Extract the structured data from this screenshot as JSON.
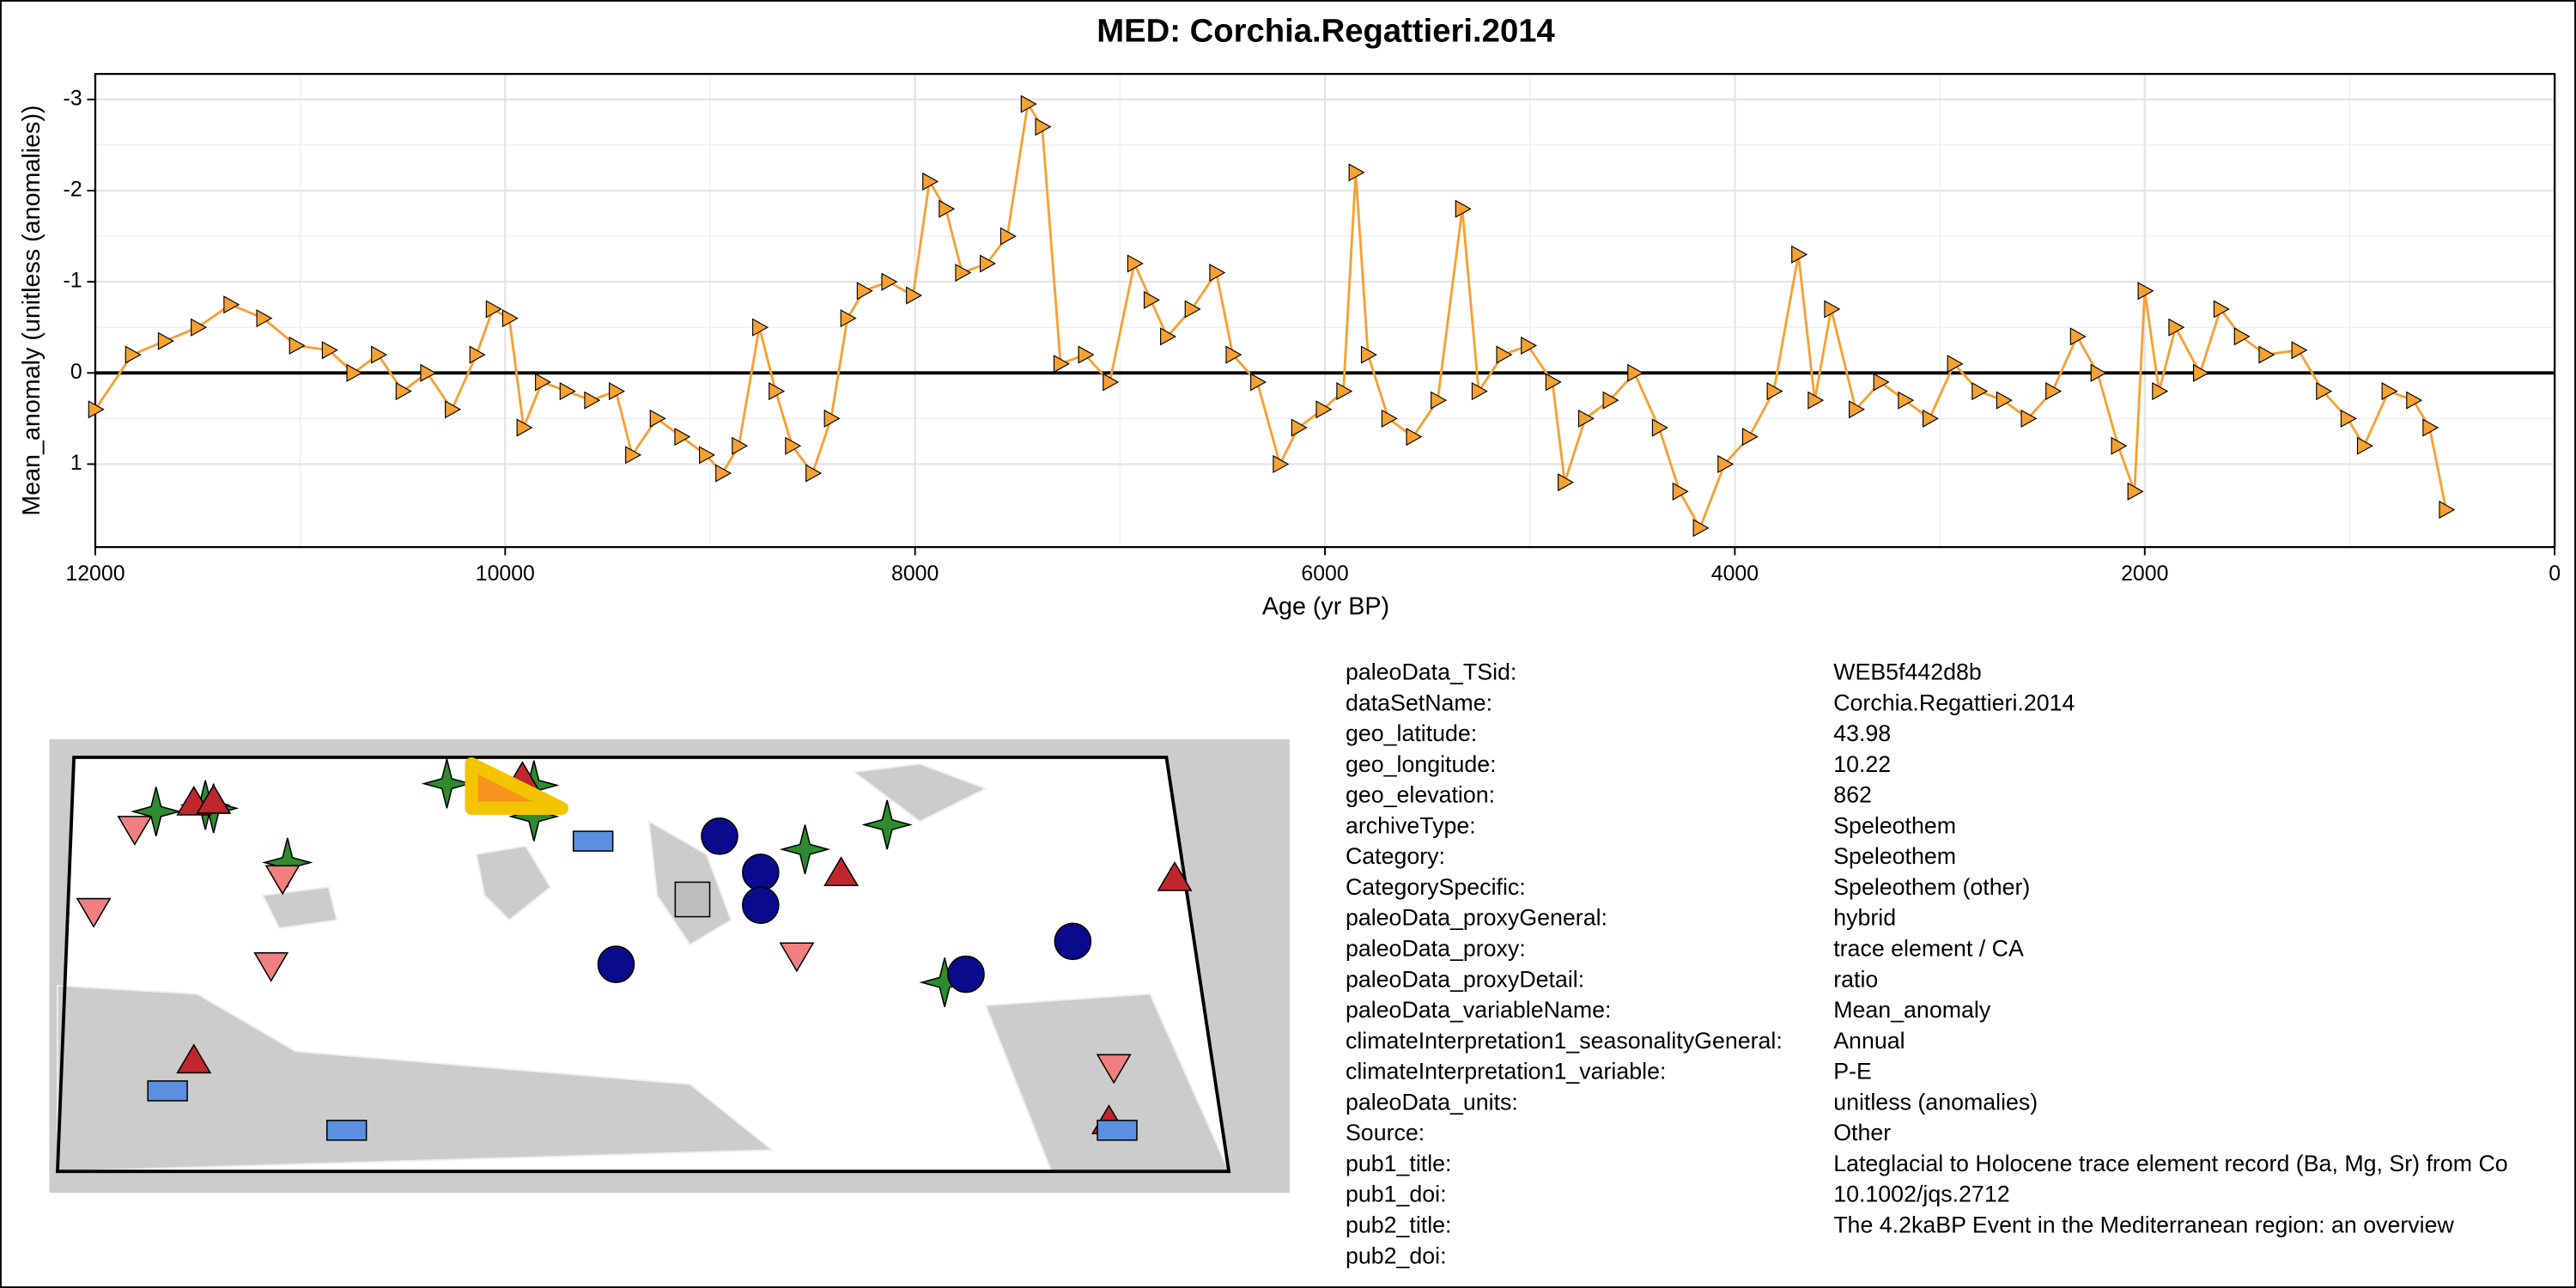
{
  "chart_data": {
    "type": "line",
    "title": "MED: Corchia.Regattieri.2014",
    "xlabel": "Age (yr BP)",
    "ylabel": "Mean_anomaly (unitless (anomalies))",
    "x": [
      12000,
      11820,
      11660,
      11500,
      11340,
      11180,
      11020,
      10860,
      10740,
      10620,
      10500,
      10380,
      10260,
      10140,
      10060,
      9980,
      9910,
      9820,
      9700,
      9580,
      9460,
      9380,
      9260,
      9140,
      9020,
      8940,
      8860,
      8760,
      8680,
      8600,
      8500,
      8410,
      8330,
      8250,
      8130,
      8010,
      7930,
      7850,
      7770,
      7650,
      7550,
      7450,
      7380,
      7290,
      7170,
      7050,
      6930,
      6850,
      6770,
      6650,
      6530,
      6450,
      6330,
      6220,
      6130,
      6010,
      5910,
      5850,
      5790,
      5690,
      5570,
      5450,
      5330,
      5250,
      5130,
      5010,
      4890,
      4830,
      4730,
      4610,
      4490,
      4370,
      4270,
      4170,
      4050,
      3930,
      3810,
      3690,
      3610,
      3530,
      3410,
      3290,
      3170,
      3050,
      2930,
      2810,
      2690,
      2570,
      2450,
      2330,
      2230,
      2130,
      2050,
      2000,
      1930,
      1850,
      1730,
      1630,
      1530,
      1410,
      1250,
      1130,
      1010,
      930,
      810,
      690,
      610,
      530
    ],
    "series": [
      {
        "color": "#f7a133",
        "values": [
          0.4,
          -0.2,
          -0.35,
          -0.5,
          -0.75,
          -0.6,
          -0.3,
          -0.25,
          0.0,
          -0.2,
          0.2,
          0.0,
          0.4,
          -0.2,
          -0.7,
          -0.6,
          0.6,
          0.1,
          0.2,
          0.3,
          0.2,
          0.9,
          0.5,
          0.7,
          0.9,
          1.1,
          0.8,
          -0.5,
          0.2,
          0.8,
          1.1,
          0.5,
          -0.6,
          -0.9,
          -1.0,
          -0.85,
          -2.1,
          -1.8,
          -1.1,
          -1.2,
          -1.5,
          -2.95,
          -2.7,
          -0.1,
          -0.2,
          0.1,
          -1.2,
          -0.8,
          -0.4,
          -0.7,
          -1.1,
          -0.2,
          0.1,
          1.0,
          0.6,
          0.4,
          0.2,
          -2.2,
          -0.2,
          0.5,
          0.7,
          0.3,
          -1.8,
          0.2,
          -0.2,
          -0.3,
          0.1,
          1.2,
          0.5,
          0.3,
          0.0,
          0.6,
          1.3,
          1.7,
          1.0,
          0.7,
          0.2,
          -1.3,
          0.3,
          -0.7,
          0.4,
          0.1,
          0.3,
          0.5,
          -0.1,
          0.2,
          0.3,
          0.5,
          0.2,
          -0.4,
          0.0,
          0.8,
          1.3,
          -0.9,
          0.2,
          -0.5,
          0.0,
          -0.7,
          -0.4,
          -0.2,
          -0.25,
          0.2,
          0.5,
          0.8,
          0.2,
          0.3,
          0.6,
          1.5
        ]
      }
    ],
    "xlim": [
      12000,
      0
    ],
    "ylim": [
      1.91,
      -3.28
    ],
    "xticks": [
      12000,
      10000,
      8000,
      6000,
      4000,
      2000,
      0
    ],
    "yticks": [
      -3,
      -2,
      -1,
      0,
      1
    ],
    "grid": true
  },
  "metadata": {
    "rows": [
      [
        "paleoData_TSid:",
        "WEB5f442d8b"
      ],
      [
        "dataSetName:",
        "Corchia.Regattieri.2014"
      ],
      [
        "geo_latitude:",
        "43.98"
      ],
      [
        "geo_longitude:",
        "10.22"
      ],
      [
        "geo_elevation:",
        "862"
      ],
      [
        "archiveType:",
        "Speleothem"
      ],
      [
        "Category:",
        "Speleothem"
      ],
      [
        "CategorySpecific:",
        "Speleothem (other)"
      ],
      [
        "paleoData_proxyGeneral:",
        "hybrid"
      ],
      [
        "paleoData_proxy:",
        "trace element / CA"
      ],
      [
        "paleoData_proxyDetail:",
        "ratio"
      ],
      [
        "paleoData_variableName:",
        "Mean_anomaly"
      ],
      [
        "climateInterpretation1_seasonalityGeneral:",
        "Annual"
      ],
      [
        "climateInterpretation1_variable:",
        "P-E"
      ],
      [
        "paleoData_units:",
        "unitless (anomalies)"
      ],
      [
        "Source:",
        "Other"
      ],
      [
        "pub1_title:",
        "Lateglacial to Holocene trace element record (Ba, Mg, Sr) from Co"
      ],
      [
        "pub1_doi:",
        "10.1002/jqs.2712"
      ],
      [
        "pub2_title:",
        "The 4.2kaBP Event in the Mediterranean region: an overview"
      ],
      [
        "pub2_doi:"
      ]
    ]
  }
}
